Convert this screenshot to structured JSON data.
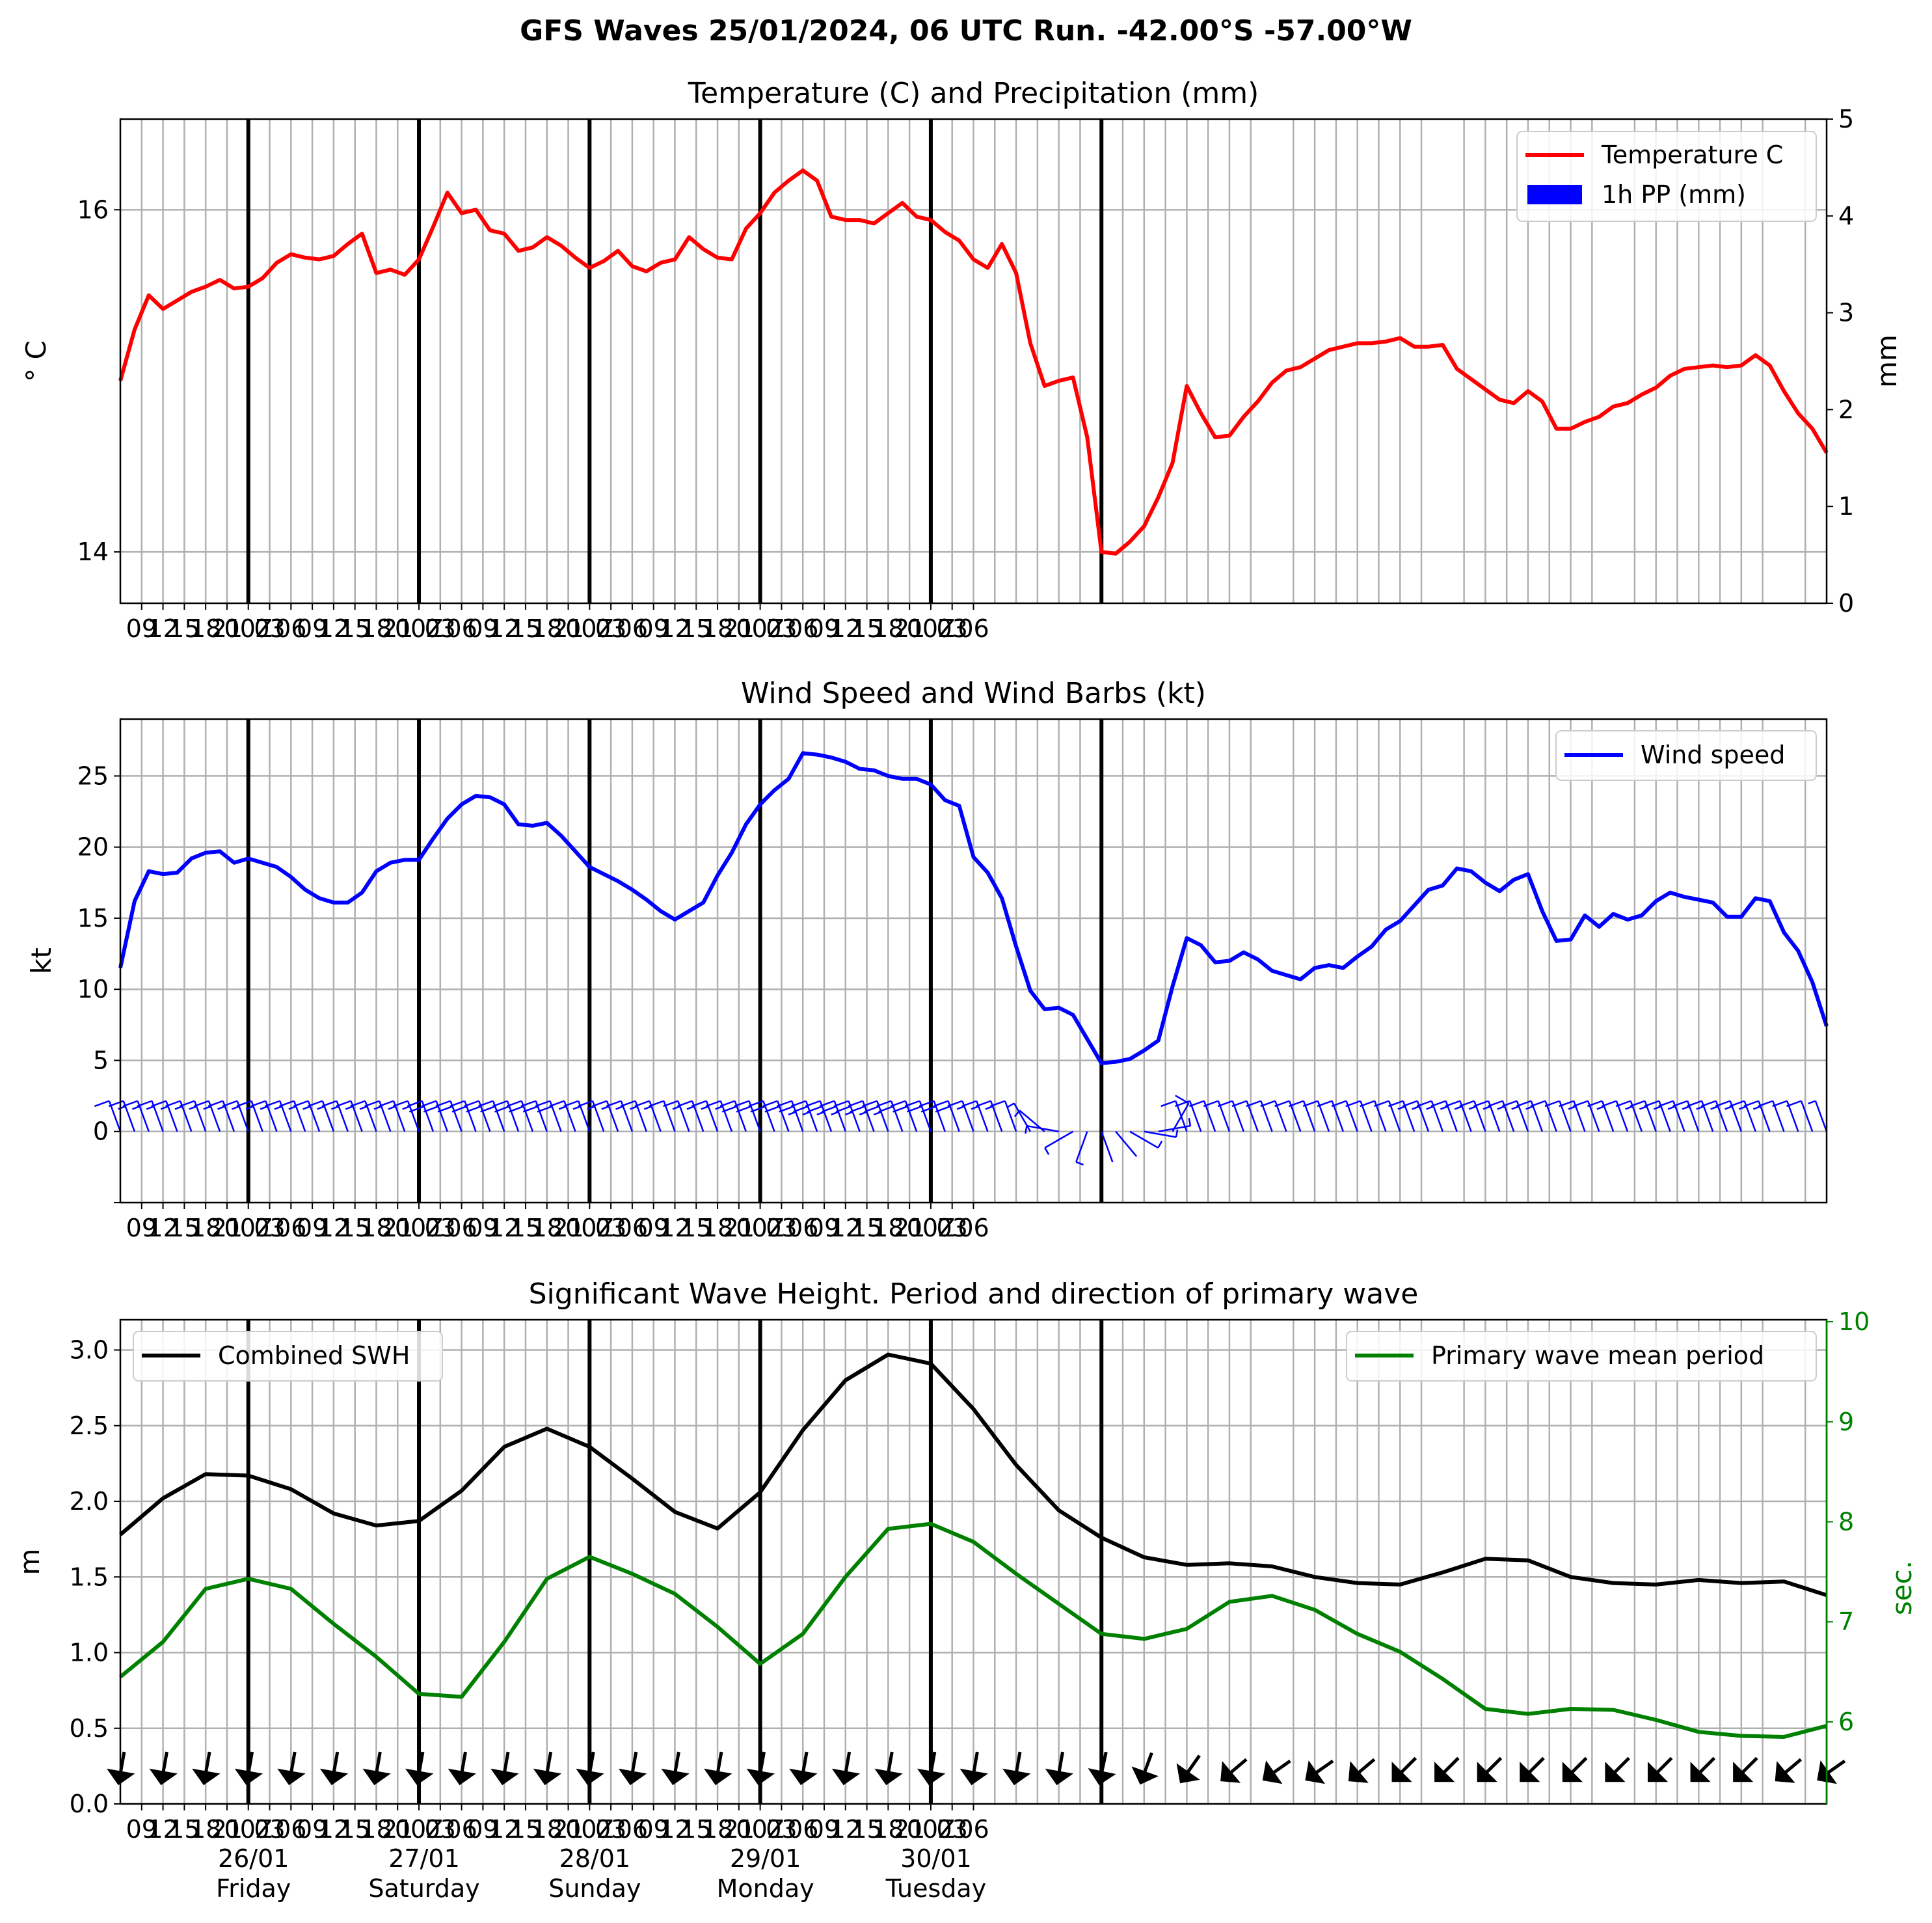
{
  "suptitle": "GFS Waves 25/01/2024, 06 UTC Run. -42.00°S -57.00°W",
  "colors": {
    "temperature": "#ff0000",
    "precip": "#0000ff",
    "wind": "#0000ff",
    "swh": "#000000",
    "period": "#008000",
    "grid": "#b0b0b0"
  },
  "time_axis": {
    "x": "hours since 25/01 06Z (first point); 3-hourly ticks",
    "tick_labels": [
      "09",
      "12",
      "15",
      "18",
      "21",
      "00Z",
      "03",
      "06",
      "09",
      "12",
      "15",
      "18",
      "21",
      "00Z",
      "03",
      "06",
      "09",
      "12",
      "15",
      "18",
      "21",
      "00Z",
      "03",
      "06",
      "09",
      "12",
      "15",
      "18",
      "21",
      "00Z",
      "03",
      "06",
      "09",
      "12",
      "15",
      "18",
      "21",
      "00Z",
      "03",
      "06"
    ],
    "day_labels": [
      {
        "date": "26/01",
        "day": "Friday"
      },
      {
        "date": "27/01",
        "day": "Saturday"
      },
      {
        "date": "28/01",
        "day": "Sunday"
      },
      {
        "date": "29/01",
        "day": "Monday"
      },
      {
        "date": "30/01",
        "day": "Tuesday"
      }
    ]
  },
  "chart_data": [
    {
      "type": "line",
      "title": "Temperature (C) and Precipitation (mm)",
      "ylabel": "° C",
      "ylabel_right": "mm",
      "ylim": [
        13.7,
        16.53
      ],
      "y_ticks": [
        "14",
        "16"
      ],
      "ylim_right": [
        0,
        5
      ],
      "y_ticks_right": [
        "0",
        "1",
        "2",
        "3",
        "4",
        "5"
      ],
      "legend_position": "top-right",
      "series": [
        {
          "name": "Temperature C",
          "type": "line",
          "values": [
            15.0,
            15.3,
            15.5,
            15.42,
            15.47,
            15.52,
            15.55,
            15.59,
            15.54,
            15.55,
            15.6,
            15.69,
            15.74,
            15.72,
            15.71,
            15.73,
            15.8,
            15.86,
            15.63,
            15.65,
            15.62,
            15.71,
            15.9,
            16.1,
            15.98,
            16.0,
            15.88,
            15.86,
            15.76,
            15.78,
            15.84,
            15.79,
            15.72,
            15.66,
            15.7,
            15.76,
            15.67,
            15.64,
            15.69,
            15.71,
            15.84,
            15.77,
            15.72,
            15.71,
            15.89,
            15.98,
            16.1,
            16.17,
            16.23,
            16.17,
            15.96,
            15.94,
            15.94,
            15.92,
            15.98,
            16.04,
            15.96,
            15.94,
            15.87,
            15.82,
            15.71,
            15.66,
            15.8,
            15.63,
            15.22,
            14.97,
            15.0,
            15.02,
            14.67,
            14.0,
            13.99,
            14.06,
            14.15,
            14.32,
            14.52,
            14.97,
            14.81,
            14.67,
            14.68,
            14.79,
            14.88,
            14.99,
            15.06,
            15.08,
            15.13,
            15.18,
            15.2,
            15.22,
            15.22,
            15.23,
            15.25,
            15.2,
            15.2,
            15.21,
            15.07,
            15.01,
            14.95,
            14.89,
            14.87,
            14.94,
            14.88,
            14.72,
            14.72,
            14.76,
            14.79,
            14.85,
            14.87,
            14.92,
            14.96,
            15.03,
            15.07,
            15.08,
            15.09,
            15.08,
            15.09,
            15.15,
            15.09,
            14.94,
            14.81,
            14.72,
            14.58
          ]
        },
        {
          "name": "1h PP (mm)",
          "type": "bar",
          "values": []
        }
      ]
    },
    {
      "type": "line",
      "title": "Wind Speed and Wind Barbs (kt)",
      "ylabel": "kt",
      "ylim": [
        -5,
        29
      ],
      "y_ticks": [
        "0",
        "5",
        "10",
        "15",
        "20",
        "25"
      ],
      "legend_position": "top-right",
      "series": [
        {
          "name": "Wind speed",
          "values": [
            11.5,
            16.2,
            18.3,
            18.1,
            18.2,
            19.2,
            19.6,
            19.7,
            18.9,
            19.2,
            18.9,
            18.6,
            17.9,
            17.0,
            16.4,
            16.1,
            16.1,
            16.8,
            18.3,
            18.9,
            19.1,
            19.1,
            20.6,
            22.0,
            23.0,
            23.6,
            23.5,
            23.0,
            21.6,
            21.5,
            21.7,
            20.8,
            19.7,
            18.6,
            18.1,
            17.6,
            17.0,
            16.3,
            15.5,
            14.9,
            15.5,
            16.1,
            18.0,
            19.6,
            21.6,
            23.0,
            24.0,
            24.8,
            26.6,
            26.5,
            26.3,
            26.0,
            25.5,
            25.4,
            25.0,
            24.8,
            24.8,
            24.4,
            23.3,
            22.9,
            19.3,
            18.2,
            16.4,
            13.0,
            9.9,
            8.6,
            8.7,
            8.2,
            6.5,
            4.8,
            4.9,
            5.1,
            5.7,
            6.4,
            10.2,
            13.6,
            13.1,
            11.9,
            12.0,
            12.6,
            12.1,
            11.3,
            11.0,
            10.7,
            11.5,
            11.7,
            11.5,
            12.3,
            13.0,
            14.2,
            14.8,
            15.9,
            17.0,
            17.3,
            18.5,
            18.3,
            17.5,
            16.9,
            17.7,
            18.1,
            15.5,
            13.4,
            13.5,
            15.2,
            14.4,
            15.3,
            14.9,
            15.2,
            16.2,
            16.8,
            16.5,
            16.3,
            16.1,
            15.1,
            15.1,
            16.4,
            16.2,
            14.0,
            12.7,
            10.5,
            7.4
          ]
        }
      ],
      "barbs": {
        "name": "Wind barbs",
        "dir_deg": [
          200,
          200,
          200,
          200,
          200,
          200,
          200,
          200,
          200,
          200,
          200,
          200,
          200,
          200,
          200,
          200,
          200,
          200,
          200,
          200,
          200,
          200,
          200,
          200,
          200,
          200,
          200,
          200,
          200,
          200,
          200,
          200,
          200,
          200,
          200,
          200,
          200,
          200,
          200,
          200,
          200,
          200,
          200,
          200,
          200,
          200,
          200,
          200,
          200,
          200,
          200,
          200,
          200,
          200,
          200,
          200,
          200,
          200,
          200,
          200,
          200,
          200,
          200,
          200,
          210,
          230,
          260,
          300,
          340,
          20,
          40,
          60,
          80,
          100,
          150,
          200,
          200,
          200,
          200,
          200,
          200,
          200,
          200,
          200,
          200,
          200,
          200,
          200,
          200,
          200,
          200,
          200,
          200,
          200,
          200,
          200,
          200,
          200,
          200,
          200,
          200,
          200,
          200,
          200,
          200,
          200,
          200,
          200,
          200,
          200,
          200,
          200,
          200,
          200,
          200,
          200,
          200,
          200,
          200,
          200,
          200
        ]
      }
    },
    {
      "type": "line",
      "title": "Significant Wave Height. Period and direction of primary wave",
      "ylabel": "m",
      "ylabel_right": "sec.",
      "ylim": [
        0.0,
        3.2
      ],
      "y_ticks": [
        "0.0",
        "0.5",
        "1.0",
        "1.5",
        "2.0",
        "2.5",
        "3.0"
      ],
      "ylim_right": [
        5.18,
        10.02
      ],
      "y_ticks_right": [
        "6",
        "7",
        "8",
        "9",
        "10"
      ],
      "legend_position": "top-left / top-right",
      "series": [
        {
          "name": "Combined SWH",
          "axis": "left",
          "x_hours": [
            0,
            6,
            12,
            18,
            24,
            30,
            36,
            42,
            48,
            54,
            60,
            66,
            72,
            78,
            84,
            90,
            96,
            102,
            108,
            114,
            120,
            126,
            132,
            138,
            144,
            150,
            156,
            162,
            168,
            174,
            180,
            186,
            192,
            198,
            204,
            210,
            216,
            222,
            228,
            234,
            240
          ],
          "values": [
            1.78,
            2.02,
            2.18,
            2.17,
            2.08,
            1.92,
            1.84,
            1.87,
            2.07,
            2.36,
            2.48,
            2.36,
            2.15,
            1.93,
            1.82,
            2.06,
            2.47,
            2.8,
            2.97,
            2.91,
            2.61,
            2.24,
            1.94,
            1.76,
            1.63,
            1.58,
            1.59,
            1.57,
            1.5,
            1.46,
            1.45,
            1.53,
            1.62,
            1.61,
            1.5,
            1.46,
            1.45,
            1.48,
            1.46,
            1.47,
            1.38
          ]
        },
        {
          "name": "Primary wave mean period",
          "axis": "right",
          "x_hours": [
            0,
            6,
            12,
            18,
            24,
            30,
            36,
            42,
            48,
            54,
            60,
            66,
            72,
            78,
            84,
            90,
            96,
            102,
            108,
            114,
            120,
            126,
            132,
            138,
            144,
            150,
            156,
            162,
            168,
            174,
            180,
            186,
            192,
            198,
            204,
            210,
            216,
            222,
            228,
            234,
            240
          ],
          "values": [
            6.45,
            6.8,
            7.33,
            7.43,
            7.33,
            6.98,
            6.65,
            6.28,
            6.25,
            6.8,
            7.43,
            7.65,
            7.48,
            7.28,
            6.95,
            6.58,
            6.88,
            7.45,
            7.93,
            7.98,
            7.8,
            7.48,
            7.18,
            6.88,
            6.83,
            6.93,
            7.2,
            7.26,
            7.12,
            6.88,
            6.7,
            6.43,
            6.13,
            6.08,
            6.13,
            6.12,
            6.02,
            5.9,
            5.86,
            5.85,
            5.96
          ]
        }
      ],
      "wave_dir_deg": [
        10,
        10,
        10,
        10,
        10,
        10,
        10,
        10,
        10,
        10,
        10,
        10,
        10,
        10,
        10,
        10,
        10,
        10,
        10,
        10,
        10,
        10,
        10,
        12,
        20,
        35,
        50,
        55,
        55,
        50,
        45,
        45,
        45,
        45,
        45,
        45,
        45,
        45,
        45,
        50,
        55
      ]
    }
  ]
}
